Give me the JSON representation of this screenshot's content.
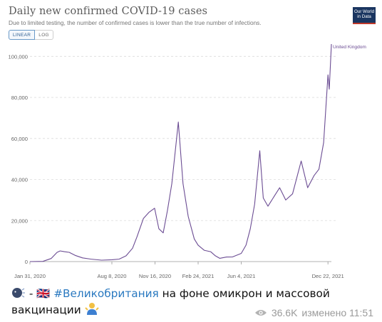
{
  "chart": {
    "title": "Daily new confirmed COVID-19 cases",
    "subtitle": "Due to limited testing, the number of confirmed cases is lower than the true number of infections.",
    "toggle": {
      "linear": "LINEAR",
      "log": "LOG",
      "active": "linear"
    },
    "logo_line1": "Our World",
    "logo_line2": "in Data",
    "series_label": "United Kingdom"
  },
  "chart_data": {
    "type": "line",
    "title": "Daily new confirmed COVID-19 cases",
    "x_ticks": [
      "Jan 31, 2020",
      "Aug 8, 2020",
      "Nov 16, 2020",
      "Feb 24, 2021",
      "Jun 4, 2021",
      "Dec 22, 2021"
    ],
    "y_ticks": [
      "0",
      "20,000",
      "40,000",
      "60,000",
      "80,000",
      "100,000"
    ],
    "ylim": [
      0,
      106000
    ],
    "grid": "horizontal-dashed",
    "series": [
      {
        "name": "United Kingdom",
        "color": "#6b4c93",
        "points": [
          [
            "2020-01-31",
            0
          ],
          [
            "2020-03-01",
            100
          ],
          [
            "2020-03-20",
            1500
          ],
          [
            "2020-04-03",
            4500
          ],
          [
            "2020-04-10",
            5200
          ],
          [
            "2020-04-20",
            4800
          ],
          [
            "2020-05-01",
            4500
          ],
          [
            "2020-05-15",
            3000
          ],
          [
            "2020-06-01",
            1800
          ],
          [
            "2020-06-20",
            1200
          ],
          [
            "2020-07-15",
            700
          ],
          [
            "2020-08-08",
            900
          ],
          [
            "2020-08-25",
            1200
          ],
          [
            "2020-09-10",
            2800
          ],
          [
            "2020-09-25",
            6500
          ],
          [
            "2020-10-05",
            12000
          ],
          [
            "2020-10-20",
            21000
          ],
          [
            "2020-11-02",
            24000
          ],
          [
            "2020-11-15",
            26000
          ],
          [
            "2020-11-25",
            16000
          ],
          [
            "2020-12-05",
            14000
          ],
          [
            "2020-12-15",
            25000
          ],
          [
            "2020-12-25",
            38000
          ],
          [
            "2021-01-05",
            60000
          ],
          [
            "2021-01-09",
            68000
          ],
          [
            "2021-01-20",
            38000
          ],
          [
            "2021-02-01",
            22000
          ],
          [
            "2021-02-15",
            11000
          ],
          [
            "2021-02-24",
            8000
          ],
          [
            "2021-03-10",
            5500
          ],
          [
            "2021-03-25",
            4800
          ],
          [
            "2021-04-05",
            2800
          ],
          [
            "2021-04-15",
            1600
          ],
          [
            "2021-05-01",
            2200
          ],
          [
            "2021-05-15",
            2300
          ],
          [
            "2021-06-04",
            4000
          ],
          [
            "2021-06-15",
            8000
          ],
          [
            "2021-06-25",
            16000
          ],
          [
            "2021-07-05",
            28000
          ],
          [
            "2021-07-17",
            54000
          ],
          [
            "2021-07-25",
            31000
          ],
          [
            "2021-08-05",
            27000
          ],
          [
            "2021-08-20",
            32000
          ],
          [
            "2021-09-01",
            36000
          ],
          [
            "2021-09-15",
            30000
          ],
          [
            "2021-10-01",
            33000
          ],
          [
            "2021-10-21",
            49000
          ],
          [
            "2021-11-05",
            36000
          ],
          [
            "2021-11-20",
            42000
          ],
          [
            "2021-12-01",
            45000
          ],
          [
            "2021-12-12",
            58000
          ],
          [
            "2021-12-22",
            91000
          ],
          [
            "2021-12-25",
            84000
          ],
          [
            "2021-12-30",
            106000
          ]
        ]
      }
    ]
  },
  "message": {
    "flag_emoji": "🇬🇧",
    "dash": "-",
    "hashtag": "#Великобритания",
    "text": " на фоне омикрон и массовой вакцинации",
    "views": "36.6K",
    "edited": "изменено 11:51"
  }
}
